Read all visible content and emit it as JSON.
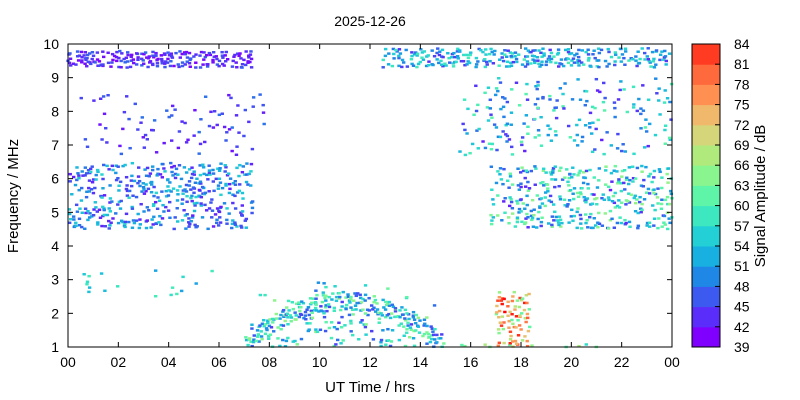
{
  "chart_data": {
    "type": "heatmap",
    "title": "2025-12-26",
    "xlabel": "UT Time / hrs",
    "ylabel": "Frequency / MHz",
    "xlim": [
      0,
      24
    ],
    "ylim": [
      1,
      10
    ],
    "x_ticks": [
      "00",
      "02",
      "04",
      "06",
      "08",
      "10",
      "12",
      "14",
      "16",
      "18",
      "20",
      "22",
      "00"
    ],
    "y_ticks": [
      "1",
      "2",
      "3",
      "4",
      "5",
      "6",
      "7",
      "8",
      "9",
      "10"
    ],
    "colorbar": {
      "label": "Signal Amplitude / dB",
      "min": 39,
      "max": 84,
      "ticks": [
        "39",
        "42",
        "45",
        "48",
        "51",
        "54",
        "57",
        "60",
        "63",
        "66",
        "69",
        "72",
        "75",
        "78",
        "81",
        "84"
      ],
      "colors": [
        "#7f00ff",
        "#5a2dfa",
        "#3c5af0",
        "#1f88e6",
        "#17b0e0",
        "#23d0d6",
        "#3de8c0",
        "#5ef5a8",
        "#88f58e",
        "#b0ea7c",
        "#d5d57a",
        "#f0b86b",
        "#ff9052",
        "#ff6a3c",
        "#ff3b22",
        "#ff0000"
      ]
    },
    "clusters": [
      {
        "name": "night-9.5MHz",
        "x_range": [
          0.0,
          7.4
        ],
        "y_range": [
          9.3,
          9.8
        ],
        "density": 0.7,
        "amp_range": [
          39,
          46
        ]
      },
      {
        "name": "night-7-8MHz",
        "x_range": [
          0.5,
          7.8
        ],
        "y_range": [
          6.7,
          8.5
        ],
        "density": 0.08,
        "amp_range": [
          40,
          47
        ]
      },
      {
        "name": "night-6MHz",
        "x_range": [
          0.0,
          7.3
        ],
        "y_range": [
          4.5,
          6.5
        ],
        "density": 0.35,
        "amp_range": [
          41,
          55
        ]
      },
      {
        "name": "night-low",
        "x_range": [
          0.5,
          6.0
        ],
        "y_range": [
          2.5,
          3.3
        ],
        "density": 0.05,
        "amp_range": [
          48,
          58
        ]
      },
      {
        "name": "day-arc",
        "x_range": [
          7.0,
          15.0
        ],
        "y_range": [
          1.0,
          3.0
        ],
        "density": 0.55,
        "amp_range": [
          43,
          64
        ]
      },
      {
        "name": "midday-top",
        "x_range": [
          12.5,
          24.0
        ],
        "y_range": [
          9.3,
          9.9
        ],
        "density": 0.55,
        "amp_range": [
          42,
          58
        ]
      },
      {
        "name": "evening-mid",
        "x_range": [
          15.5,
          24.0
        ],
        "y_range": [
          6.7,
          9.0
        ],
        "density": 0.12,
        "amp_range": [
          41,
          60
        ]
      },
      {
        "name": "evening-6MHz",
        "x_range": [
          16.8,
          24.0
        ],
        "y_range": [
          4.5,
          6.4
        ],
        "density": 0.35,
        "amp_range": [
          41,
          64
        ]
      },
      {
        "name": "evening-burst",
        "x_range": [
          17.0,
          18.4
        ],
        "y_range": [
          1.0,
          2.6
        ],
        "density": 0.5,
        "amp_range": [
          60,
          84
        ]
      },
      {
        "name": "low-floor",
        "x_range": [
          14.0,
          22.0
        ],
        "y_range": [
          1.0,
          1.1
        ],
        "density": 0.3,
        "amp_range": [
          55,
          66
        ]
      }
    ]
  }
}
